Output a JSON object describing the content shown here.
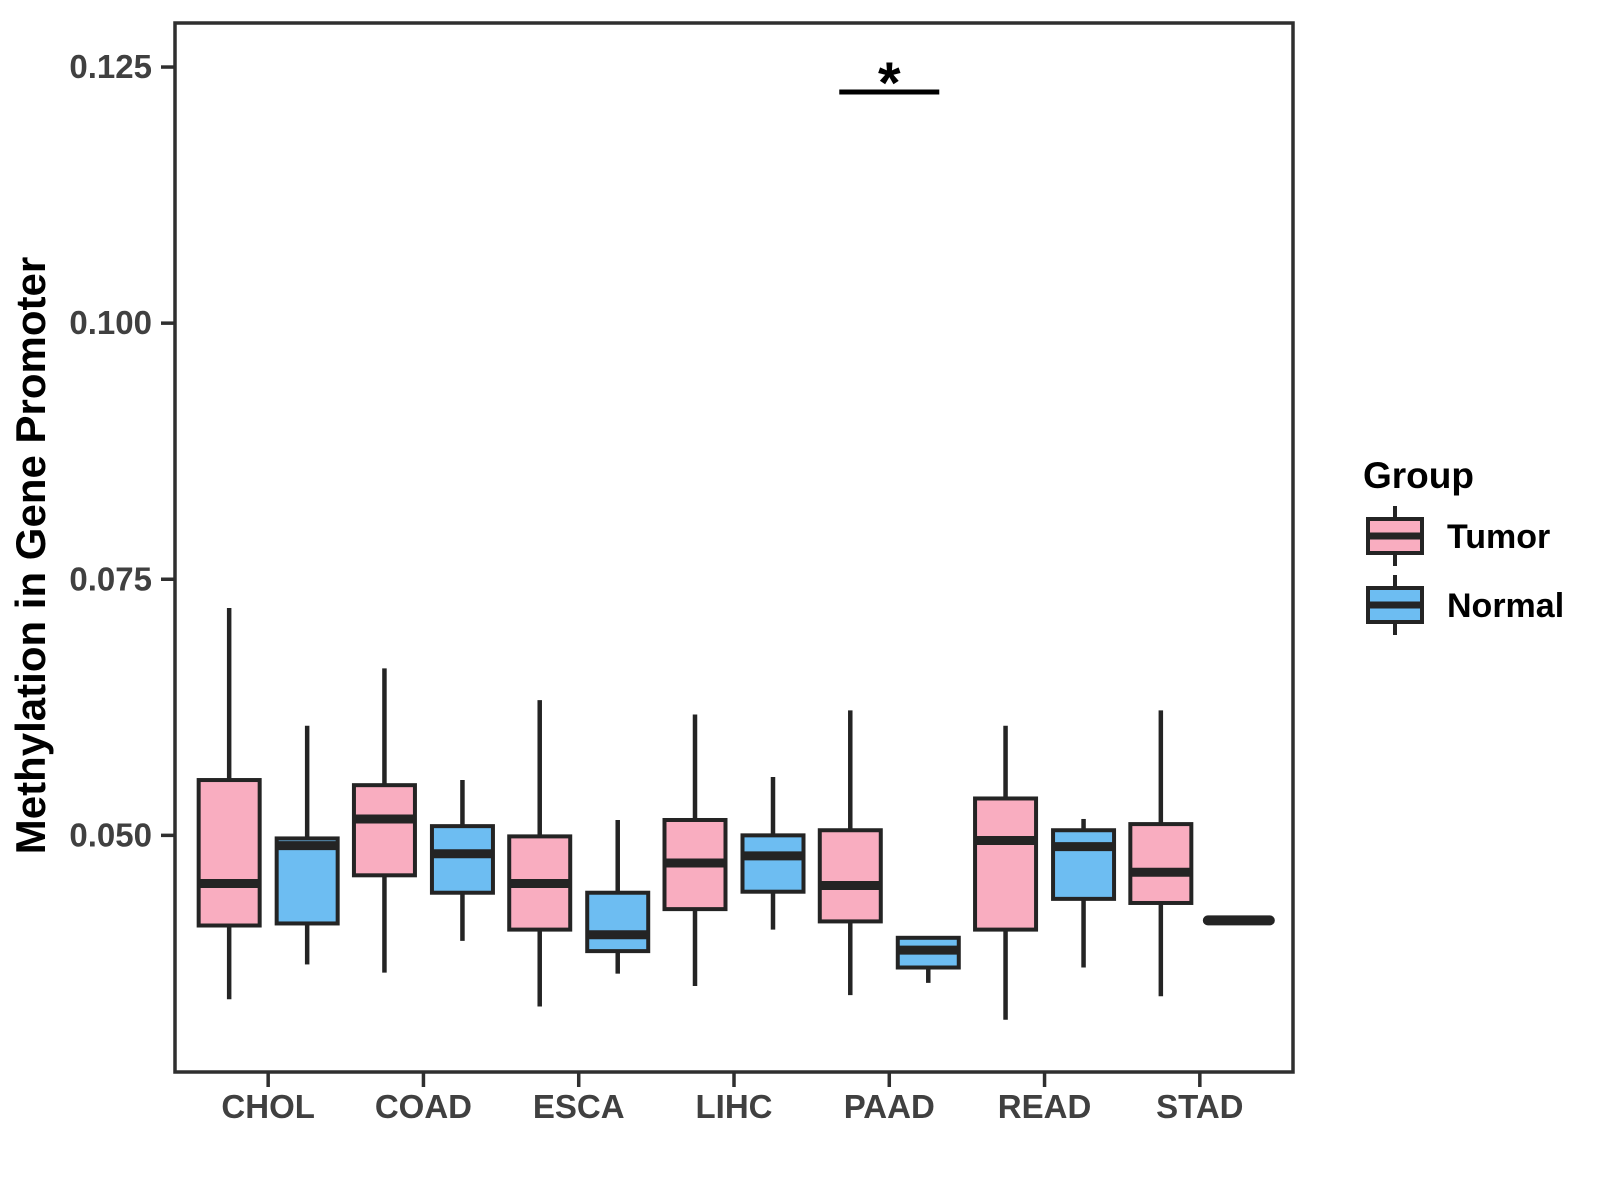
{
  "chart_data": {
    "type": "grouped_boxplot",
    "title": "",
    "xlabel": "",
    "ylabel": "Methylation in Gene Promoter",
    "categories": [
      "CHOL",
      "COAD",
      "ESCA",
      "LIHC",
      "PAAD",
      "READ",
      "STAD"
    ],
    "groups": [
      {
        "name": "Tumor",
        "color": "#F9ADC0"
      },
      {
        "name": "Normal",
        "color": "#6DBDF2"
      }
    ],
    "stroke_color": "#242424",
    "axis_color": "#2F2F2F",
    "axis_text_color": "#404040",
    "grid": false,
    "ylim": [
      0.0269,
      0.1293
    ],
    "y_ticks": [
      {
        "value": 0.05,
        "label": "0.050"
      },
      {
        "value": 0.075,
        "label": "0.075"
      },
      {
        "value": 0.1,
        "label": "0.100"
      },
      {
        "value": 0.125,
        "label": "0.125"
      }
    ],
    "boxes": [
      {
        "category": "CHOL",
        "group": "Tumor",
        "whisker_low": 0.034,
        "q1": 0.0412,
        "median": 0.0453,
        "q3": 0.0554,
        "whisker_high": 0.0722
      },
      {
        "category": "CHOL",
        "group": "Normal",
        "whisker_low": 0.0374,
        "q1": 0.0414,
        "median": 0.049,
        "q3": 0.0497,
        "whisker_high": 0.0607
      },
      {
        "category": "COAD",
        "group": "Tumor",
        "whisker_low": 0.0366,
        "q1": 0.0461,
        "median": 0.0516,
        "q3": 0.0549,
        "whisker_high": 0.0663
      },
      {
        "category": "COAD",
        "group": "Normal",
        "whisker_low": 0.0397,
        "q1": 0.0444,
        "median": 0.0482,
        "q3": 0.0509,
        "whisker_high": 0.0554
      },
      {
        "category": "ESCA",
        "group": "Tumor",
        "whisker_low": 0.0333,
        "q1": 0.0408,
        "median": 0.0453,
        "q3": 0.0499,
        "whisker_high": 0.0632
      },
      {
        "category": "ESCA",
        "group": "Normal",
        "whisker_low": 0.0365,
        "q1": 0.0387,
        "median": 0.0403,
        "q3": 0.0444,
        "whisker_high": 0.0515
      },
      {
        "category": "LIHC",
        "group": "Tumor",
        "whisker_low": 0.0353,
        "q1": 0.0428,
        "median": 0.0473,
        "q3": 0.0515,
        "whisker_high": 0.0618
      },
      {
        "category": "LIHC",
        "group": "Normal",
        "whisker_low": 0.0408,
        "q1": 0.0445,
        "median": 0.048,
        "q3": 0.05,
        "whisker_high": 0.0557
      },
      {
        "category": "PAAD",
        "group": "Tumor",
        "whisker_low": 0.0344,
        "q1": 0.0416,
        "median": 0.0451,
        "q3": 0.0505,
        "whisker_high": 0.0622
      },
      {
        "category": "PAAD",
        "group": "Normal",
        "whisker_low": 0.0356,
        "q1": 0.0371,
        "median": 0.0388,
        "q3": 0.04,
        "whisker_high": 0.04
      },
      {
        "category": "READ",
        "group": "Tumor",
        "whisker_low": 0.032,
        "q1": 0.0408,
        "median": 0.0495,
        "q3": 0.0536,
        "whisker_high": 0.0607
      },
      {
        "category": "READ",
        "group": "Normal",
        "whisker_low": 0.0371,
        "q1": 0.0438,
        "median": 0.0489,
        "q3": 0.0505,
        "whisker_high": 0.0516
      },
      {
        "category": "STAD",
        "group": "Tumor",
        "whisker_low": 0.0343,
        "q1": 0.0434,
        "median": 0.0464,
        "q3": 0.0511,
        "whisker_high": 0.0622
      },
      {
        "category": "STAD",
        "group": "Normal",
        "single_value": 0.0417
      }
    ],
    "annotations": [
      {
        "type": "significance_bracket",
        "category": "PAAD",
        "label": "*"
      }
    ],
    "legend_position": "right"
  },
  "legend": {
    "title": "Group",
    "entries": [
      {
        "label": "Tumor",
        "color": "#F9ADC0"
      },
      {
        "label": "Normal",
        "color": "#6DBDF2"
      }
    ]
  }
}
